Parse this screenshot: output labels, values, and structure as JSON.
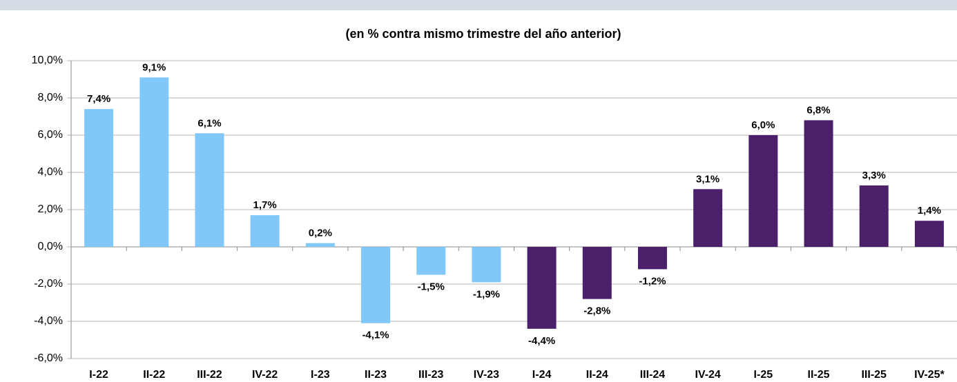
{
  "chart_data": {
    "type": "bar",
    "title": "(en % contra mismo trimestre del año anterior)",
    "categories": [
      "I-22",
      "II-22",
      "III-22",
      "IV-22",
      "I-23",
      "II-23",
      "III-23",
      "IV-23",
      "I-24",
      "II-24",
      "III-24",
      "IV-24",
      "I-25",
      "II-25",
      "III-25",
      "IV-25*"
    ],
    "values": [
      7.4,
      9.1,
      6.1,
      1.7,
      0.2,
      -4.1,
      -1.5,
      -1.9,
      -4.4,
      -2.8,
      -1.2,
      3.1,
      6.0,
      6.8,
      3.3,
      1.4
    ],
    "value_labels": [
      "7,4%",
      "9,1%",
      "6,1%",
      "1,7%",
      "0,2%",
      "-4,1%",
      "-1,5%",
      "-1,9%",
      "-4,4%",
      "-2,8%",
      "-1,2%",
      "3,1%",
      "6,0%",
      "6,8%",
      "3,3%",
      "1,4%"
    ],
    "colors": [
      "#80c8fa",
      "#80c8fa",
      "#80c8fa",
      "#80c8fa",
      "#80c8fa",
      "#80c8fa",
      "#80c8fa",
      "#80c8fa",
      "#4b1f69",
      "#4b1f69",
      "#4b1f69",
      "#4b1f69",
      "#4b1f69",
      "#4b1f69",
      "#4b1f69",
      "#4b1f69"
    ],
    "ylim": [
      -6,
      10
    ],
    "yticks": [
      {
        "value": -6,
        "label": "-6,0%"
      },
      {
        "value": -4,
        "label": "-4,0%"
      },
      {
        "value": -2,
        "label": "-2,0%"
      },
      {
        "value": 0,
        "label": "0,0%"
      },
      {
        "value": 2,
        "label": "2,0%"
      },
      {
        "value": 4,
        "label": "4,0%"
      },
      {
        "value": 6,
        "label": "6,0%"
      },
      {
        "value": 8,
        "label": "8,0%"
      },
      {
        "value": 10,
        "label": "10,0%"
      }
    ],
    "grid": true
  }
}
